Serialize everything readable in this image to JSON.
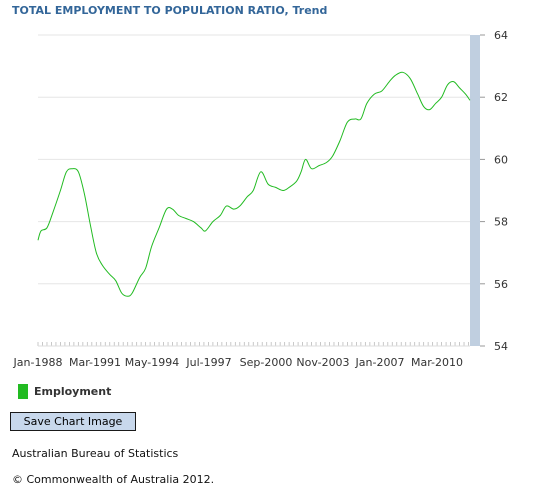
{
  "title": "TOTAL EMPLOYMENT TO POPULATION RATIO, Trend",
  "legend_label": "Employment",
  "save_button_label": "Save Chart Image",
  "source": "Australian Bureau of Statistics",
  "copyright": "© Commonwealth of Australia 2012.",
  "colors": {
    "title": "#336699",
    "series": "#22bb22",
    "axis_band": "#c0cfe0",
    "gridline": "#e6e6e6",
    "button_bg": "#c8d8ec"
  },
  "chart_data": {
    "type": "line",
    "title": "TOTAL EMPLOYMENT TO POPULATION RATIO, Trend",
    "xlabel": "",
    "ylabel": "",
    "x_tick_labels": [
      "Jan-1988",
      "Mar-1991",
      "May-1994",
      "Jul-1997",
      "Sep-2000",
      "Nov-2003",
      "Jan-2007",
      "Mar-2010"
    ],
    "y_tick_labels": [
      "54",
      "56",
      "58",
      "60",
      "62",
      "64"
    ],
    "ylim": [
      54,
      64
    ],
    "y_axis_side": "right",
    "grid": true,
    "legend_position": "bottom-left",
    "series": [
      {
        "name": "Employment",
        "color": "#22bb22",
        "points": [
          [
            "1988-01",
            57.4
          ],
          [
            "1988-03",
            57.7
          ],
          [
            "1988-07",
            57.8
          ],
          [
            "1988-11",
            58.3
          ],
          [
            "1989-04",
            59.0
          ],
          [
            "1989-08",
            59.6
          ],
          [
            "1989-12",
            59.7
          ],
          [
            "1990-04",
            59.6
          ],
          [
            "1990-08",
            58.9
          ],
          [
            "1990-12",
            57.9
          ],
          [
            "1991-04",
            57.0
          ],
          [
            "1991-08",
            56.6
          ],
          [
            "1992-01",
            56.3
          ],
          [
            "1992-05",
            56.1
          ],
          [
            "1992-09",
            55.7
          ],
          [
            "1993-01",
            55.6
          ],
          [
            "1993-04",
            55.7
          ],
          [
            "1993-09",
            56.2
          ],
          [
            "1994-01",
            56.5
          ],
          [
            "1994-05",
            57.2
          ],
          [
            "1994-10",
            57.8
          ],
          [
            "1995-03",
            58.4
          ],
          [
            "1995-07",
            58.4
          ],
          [
            "1995-11",
            58.2
          ],
          [
            "1996-04",
            58.1
          ],
          [
            "1996-09",
            58.0
          ],
          [
            "1997-02",
            57.8
          ],
          [
            "1997-05",
            57.7
          ],
          [
            "1997-10",
            58.0
          ],
          [
            "1998-03",
            58.2
          ],
          [
            "1998-07",
            58.5
          ],
          [
            "1998-12",
            58.4
          ],
          [
            "1999-04",
            58.5
          ],
          [
            "1999-09",
            58.8
          ],
          [
            "2000-01",
            59.0
          ],
          [
            "2000-06",
            59.6
          ],
          [
            "2000-11",
            59.2
          ],
          [
            "2001-04",
            59.1
          ],
          [
            "2001-09",
            59.0
          ],
          [
            "2002-01",
            59.1
          ],
          [
            "2002-06",
            59.3
          ],
          [
            "2002-09",
            59.6
          ],
          [
            "2002-12",
            60.0
          ],
          [
            "2003-04",
            59.7
          ],
          [
            "2003-09",
            59.8
          ],
          [
            "2004-02",
            59.9
          ],
          [
            "2004-06",
            60.1
          ],
          [
            "2004-11",
            60.6
          ],
          [
            "2005-04",
            61.2
          ],
          [
            "2005-09",
            61.3
          ],
          [
            "2006-01",
            61.3
          ],
          [
            "2006-05",
            61.8
          ],
          [
            "2006-10",
            62.1
          ],
          [
            "2007-03",
            62.2
          ],
          [
            "2007-08",
            62.5
          ],
          [
            "2007-12",
            62.7
          ],
          [
            "2008-05",
            62.8
          ],
          [
            "2008-10",
            62.6
          ],
          [
            "2009-03",
            62.1
          ],
          [
            "2009-07",
            61.7
          ],
          [
            "2009-11",
            61.6
          ],
          [
            "2010-03",
            61.8
          ],
          [
            "2010-07",
            62.0
          ],
          [
            "2010-11",
            62.4
          ],
          [
            "2011-03",
            62.5
          ],
          [
            "2011-07",
            62.3
          ],
          [
            "2011-11",
            62.1
          ],
          [
            "2012-02",
            61.9
          ]
        ]
      }
    ]
  }
}
